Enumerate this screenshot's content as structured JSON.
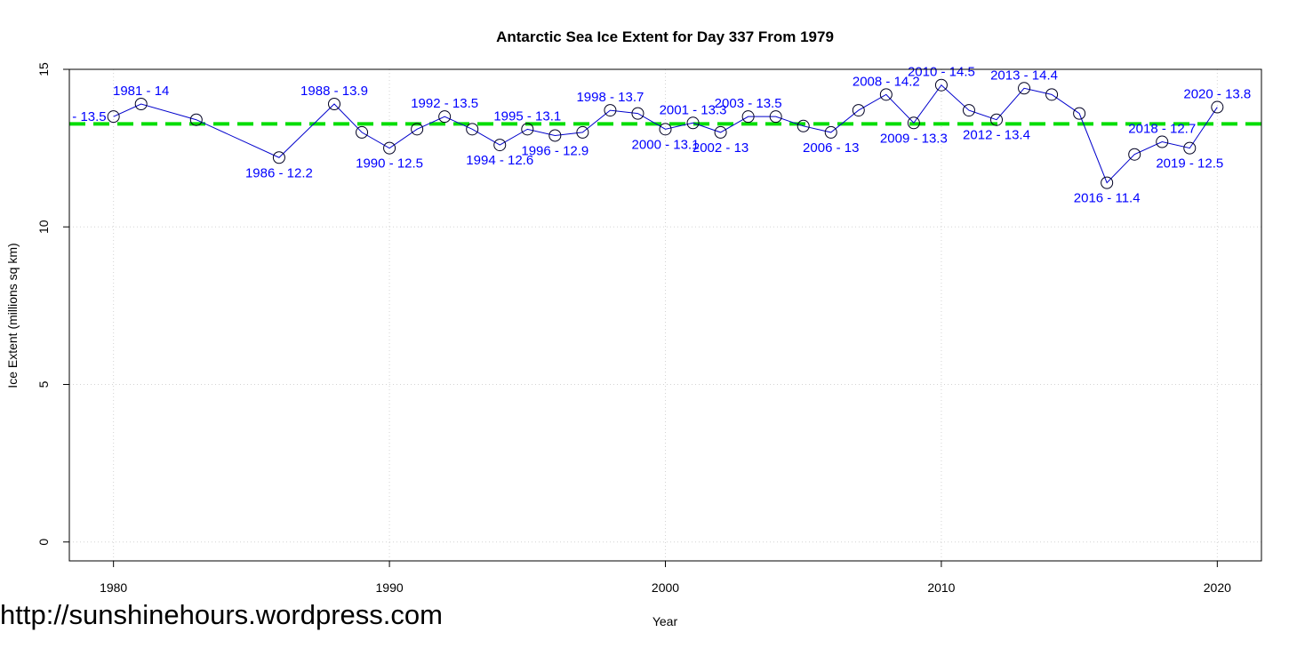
{
  "watermark": "http://sunshinehours.wordpress.com",
  "chart_data": {
    "type": "line",
    "title": "Antarctic Sea Ice Extent for Day 337 From 1979",
    "xlabel": "Year",
    "ylabel": "Ice Extent (millions sq km)",
    "xlim": [
      1978.4,
      2021.6
    ],
    "ylim": [
      -0.6,
      15
    ],
    "xticks": [
      1980,
      1990,
      2000,
      2010,
      2020
    ],
    "yticks": [
      0,
      5,
      10,
      15
    ],
    "grid": true,
    "line_color": "#0000cc",
    "mean_line": {
      "value": 13.27,
      "color": "#00dd00",
      "style": "dashed"
    },
    "series": [
      {
        "x": [
          1980,
          1981,
          1983,
          1986,
          1988,
          1989,
          1990,
          1991,
          1992,
          1993,
          1994,
          1995,
          1996,
          1997,
          1998,
          1999,
          2000,
          2001,
          2002,
          2003,
          2004,
          2005,
          2006,
          2007,
          2008,
          2009,
          2010,
          2011,
          2012,
          2013,
          2014,
          2015,
          2016,
          2017,
          2018,
          2019,
          2020
        ],
        "y": [
          13.5,
          13.9,
          13.4,
          12.2,
          13.9,
          13.0,
          12.5,
          13.1,
          13.5,
          13.1,
          12.6,
          13.1,
          12.9,
          13.0,
          13.7,
          13.6,
          13.1,
          13.3,
          13.0,
          13.5,
          13.5,
          13.2,
          13.0,
          13.7,
          14.2,
          13.3,
          14.5,
          13.7,
          13.4,
          14.4,
          14.2,
          13.6,
          11.4,
          12.3,
          12.7,
          12.5,
          13.8
        ]
      }
    ],
    "annotations": [
      {
        "x": 1980,
        "y": 13.5,
        "text": "- 13.5",
        "pos": "left"
      },
      {
        "x": 1981,
        "y": 13.9,
        "text": "1981 - 14",
        "pos": "above"
      },
      {
        "x": 1986,
        "y": 12.2,
        "text": "1986 - 12.2",
        "pos": "below"
      },
      {
        "x": 1988,
        "y": 13.9,
        "text": "1988 - 13.9",
        "pos": "above"
      },
      {
        "x": 1990,
        "y": 12.5,
        "text": "1990 - 12.5",
        "pos": "below"
      },
      {
        "x": 1992,
        "y": 13.5,
        "text": "1992 - 13.5",
        "pos": "above"
      },
      {
        "x": 1994,
        "y": 12.6,
        "text": "1994 - 12.6",
        "pos": "below"
      },
      {
        "x": 1995,
        "y": 13.1,
        "text": "1995 - 13.1",
        "pos": "above"
      },
      {
        "x": 1996,
        "y": 12.9,
        "text": "1996 - 12.9",
        "pos": "below"
      },
      {
        "x": 1998,
        "y": 13.7,
        "text": "1998 - 13.7",
        "pos": "above"
      },
      {
        "x": 2000,
        "y": 13.1,
        "text": "2000 - 13.1",
        "pos": "below"
      },
      {
        "x": 2001,
        "y": 13.3,
        "text": "2001 - 13.3",
        "pos": "above"
      },
      {
        "x": 2002,
        "y": 13.0,
        "text": "2002 - 13",
        "pos": "below"
      },
      {
        "x": 2003,
        "y": 13.5,
        "text": "2003 - 13.5",
        "pos": "above"
      },
      {
        "x": 2006,
        "y": 13.0,
        "text": "2006 - 13",
        "pos": "below"
      },
      {
        "x": 2008,
        "y": 14.2,
        "text": "2008 - 14.2",
        "pos": "above"
      },
      {
        "x": 2009,
        "y": 13.3,
        "text": "2009 - 13.3",
        "pos": "below"
      },
      {
        "x": 2010,
        "y": 14.5,
        "text": "2010 - 14.5",
        "pos": "above"
      },
      {
        "x": 2012,
        "y": 13.4,
        "text": "2012 - 13.4",
        "pos": "below"
      },
      {
        "x": 2013,
        "y": 14.4,
        "text": "2013 - 14.4",
        "pos": "above"
      },
      {
        "x": 2016,
        "y": 11.4,
        "text": "2016 - 11.4",
        "pos": "below"
      },
      {
        "x": 2018,
        "y": 12.7,
        "text": "2018 - 12.7",
        "pos": "above"
      },
      {
        "x": 2019,
        "y": 12.5,
        "text": "2019 - 12.5",
        "pos": "below"
      },
      {
        "x": 2020,
        "y": 13.8,
        "text": "2020 - 13.8",
        "pos": "above"
      }
    ]
  }
}
